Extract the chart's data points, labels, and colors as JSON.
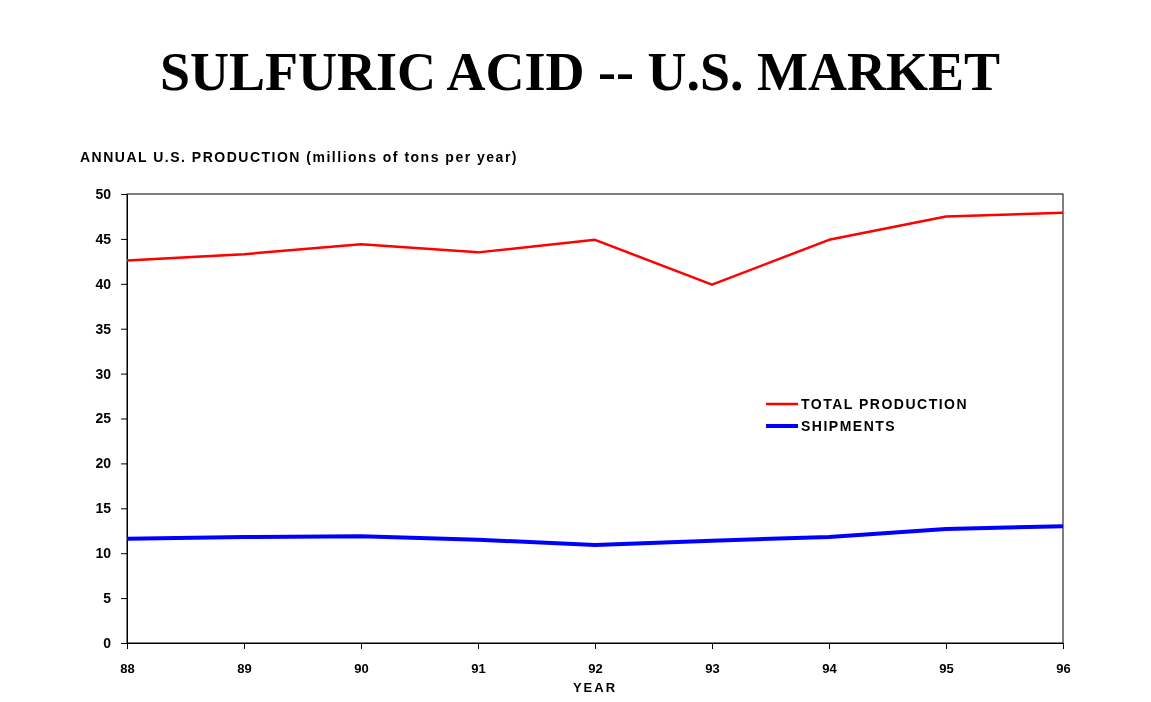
{
  "chart_data": {
    "type": "line",
    "title": "SULFURIC ACID -- U.S. MARKET",
    "ylabel": "ANNUAL U.S. PRODUCTION (millions of tons per year)",
    "xlabel": "YEAR",
    "x": [
      88,
      89,
      90,
      91,
      92,
      93,
      94,
      95,
      96
    ],
    "xlim": [
      88,
      96
    ],
    "xticks": [
      88,
      89,
      90,
      91,
      92,
      93,
      94,
      95,
      96
    ],
    "ylim": [
      0,
      50
    ],
    "yticks": [
      0,
      5,
      10,
      15,
      20,
      25,
      30,
      35,
      40,
      45,
      50
    ],
    "grid": false,
    "legend": "right",
    "marker": "none",
    "series": [
      {
        "name": "TOTAL PRODUCTION",
        "color": "#ff0000",
        "values": [
          42.6,
          43.3,
          44.4,
          43.5,
          44.9,
          39.9,
          44.9,
          47.5,
          47.9
        ]
      },
      {
        "name": "SHIPMENTS",
        "color": "#0000ff",
        "values": [
          11.6,
          11.8,
          11.9,
          11.5,
          10.9,
          11.4,
          11.8,
          12.7,
          13.0
        ]
      }
    ]
  }
}
